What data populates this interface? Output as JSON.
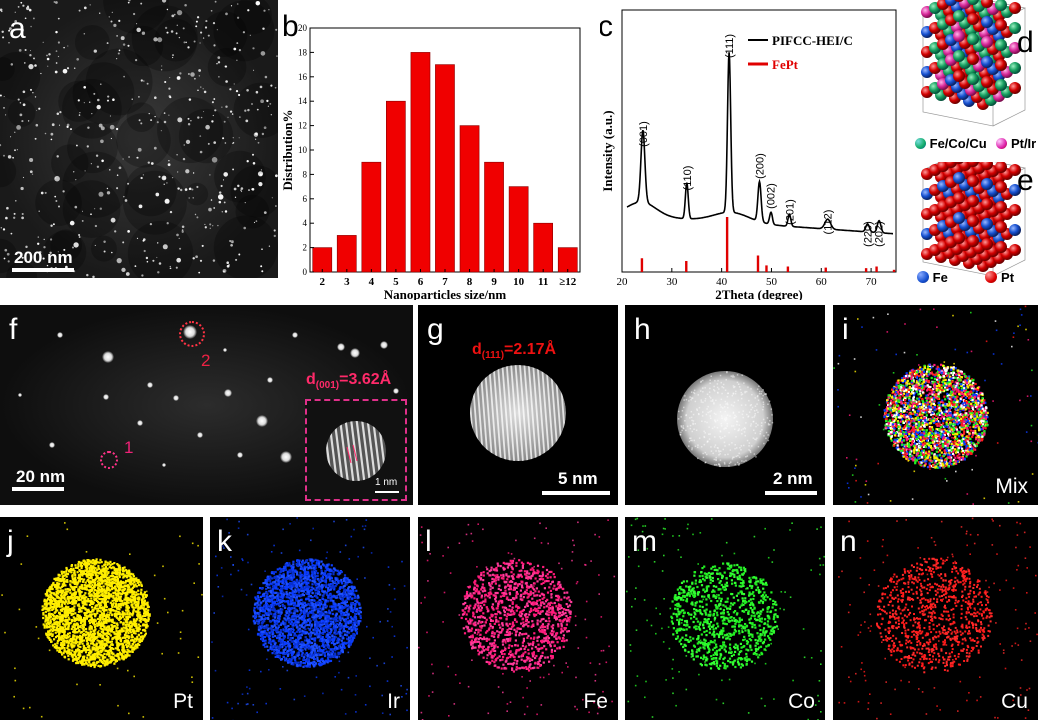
{
  "panels": {
    "a": "a",
    "b": "b",
    "c": "c",
    "d": "d",
    "e": "e",
    "f": "f",
    "g": "g",
    "h": "h",
    "i": "i",
    "j": "j",
    "k": "k",
    "l": "l",
    "m": "m",
    "n": "n"
  },
  "scalebars": {
    "a": "200 nm",
    "f": "20 nm",
    "f_inset": "1 nm",
    "g": "5 nm",
    "h": "2 nm"
  },
  "annotations": {
    "f_d_main": "d",
    "f_d_sub": "(001)",
    "f_d_val": "=3.62Å",
    "g_d_main": "d",
    "g_d_sub": "(111)",
    "g_d_val": "=2.17Å",
    "f_particle_1": "1",
    "f_particle_2": "2"
  },
  "mapping_labels": {
    "i": "Mix",
    "j": "Pt",
    "k": "Ir",
    "l": "Fe",
    "m": "Co",
    "n": "Cu"
  },
  "mapping_colors": {
    "j": "#ffee00",
    "k": "#0a3cff",
    "l": "#ff1a7a",
    "m": "#22ee22",
    "n": "#ff1a1a"
  },
  "structure_legend": {
    "d_a": "Fe/Co/Cu",
    "d_b": "Pt/Ir",
    "e_a": "Fe",
    "e_b": "Pt"
  },
  "chart_data": [
    {
      "type": "bar",
      "panel": "b",
      "categories": [
        "2",
        "3",
        "4",
        "5",
        "6",
        "7",
        "8",
        "9",
        "10",
        "11",
        "≥12"
      ],
      "values": [
        2,
        3,
        9,
        14,
        18,
        17,
        12,
        9,
        7,
        4,
        2
      ],
      "xlabel": "Nanoparticles size/nm",
      "ylabel": "Distribution%",
      "ylim": [
        0,
        20
      ],
      "yticks": [
        "0",
        "2",
        "4",
        "6",
        "8",
        "10",
        "12",
        "14",
        "16",
        "18",
        "20"
      ],
      "color": "#f00000"
    },
    {
      "type": "line",
      "panel": "c",
      "xlabel": "2Theta (degree)",
      "ylabel": "Intensity (a.u.)",
      "xlim": [
        20,
        75
      ],
      "xticks": [
        "20",
        "30",
        "40",
        "50",
        "60",
        "70"
      ],
      "legend": [
        "PIFCC-HEI/C",
        "FePt"
      ],
      "legend_colors": [
        "#000000",
        "#e00000"
      ],
      "peaks": [
        {
          "x": 24.2,
          "label": "(001)"
        },
        {
          "x": 33.0,
          "label": "(110)"
        },
        {
          "x": 41.5,
          "label": "(111)"
        },
        {
          "x": 47.6,
          "label": "(200)"
        },
        {
          "x": 49.8,
          "label": "(002)"
        },
        {
          "x": 53.6,
          "label": "(201)"
        },
        {
          "x": 61.3,
          "label": "(112)"
        },
        {
          "x": 69.3,
          "label": "(220)"
        },
        {
          "x": 71.5,
          "label": "(202)"
        }
      ],
      "reference_sticks": [
        {
          "x": 24.0,
          "h": 0.25
        },
        {
          "x": 32.9,
          "h": 0.2
        },
        {
          "x": 41.1,
          "h": 1.0
        },
        {
          "x": 47.3,
          "h": 0.3
        },
        {
          "x": 49.0,
          "h": 0.12
        },
        {
          "x": 53.3,
          "h": 0.1
        },
        {
          "x": 60.9,
          "h": 0.08
        },
        {
          "x": 69.0,
          "h": 0.07
        },
        {
          "x": 71.1,
          "h": 0.1
        },
        {
          "x": 74.6,
          "h": 0.04
        }
      ]
    }
  ]
}
